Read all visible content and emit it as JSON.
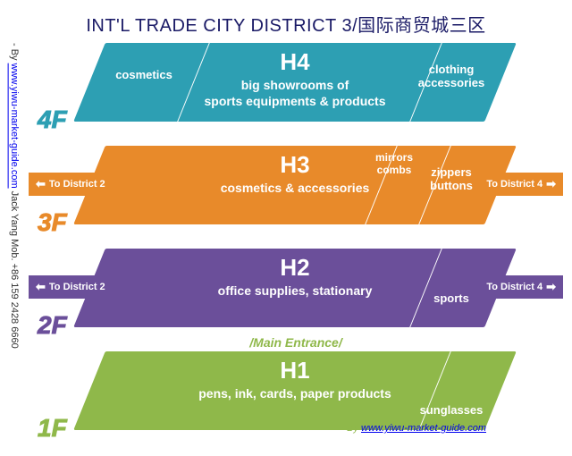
{
  "title": "INT'L TRADE CITY DISTRICT 3/国际商贸城三区",
  "side_prefix": "- By ",
  "side_link": "www.yiwu-market-guide.com",
  "side_suffix": "   Jack Yang Mob. +86 159 2428 6660",
  "entrance_label": "/Main Entrance/",
  "credit_prefix": "- By ",
  "credit_link": "www.yiwu-market-guide.com",
  "colors": {
    "f4": "#2d9fb3",
    "f3": "#e88a2a",
    "f2": "#6b4f9a",
    "f1": "#8fb84a",
    "title": "#1a1a66"
  },
  "floors": {
    "f4": {
      "label": "4F",
      "hall": "H4",
      "sub": "big showrooms of\nsports equipments & products",
      "left": "cosmetics",
      "right": "clothing\naccessories"
    },
    "f3": {
      "label": "3F",
      "hall": "H3",
      "sub": "cosmetics & accessories",
      "mid_right": "mirrors\ncombs",
      "right": "zippers\nbuttons",
      "arrow_left": "To District 2",
      "arrow_right": "To District 4"
    },
    "f2": {
      "label": "2F",
      "hall": "H2",
      "sub": "office supplies, stationary",
      "right": "sports",
      "arrow_left": "To District 2",
      "arrow_right": "To District 4"
    },
    "f1": {
      "label": "1F",
      "hall": "H1",
      "sub": "pens, ink, cards, paper products",
      "right": "sunglasses"
    }
  }
}
